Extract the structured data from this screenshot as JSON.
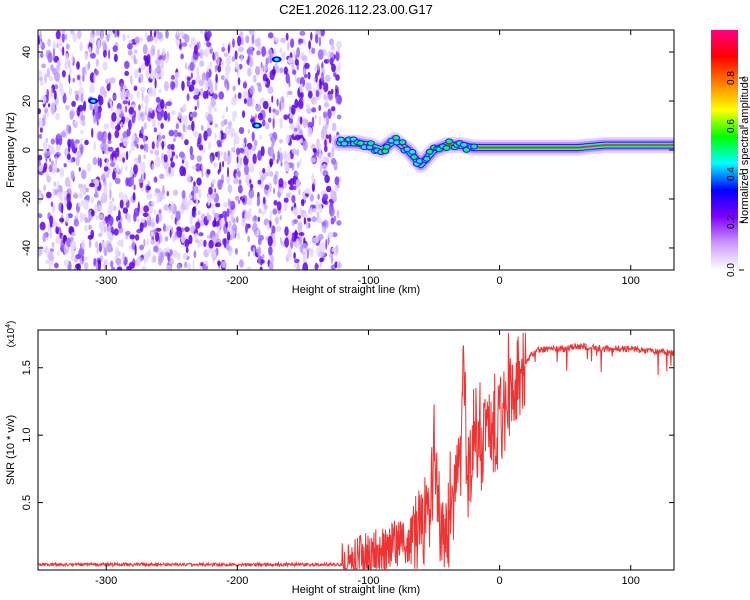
{
  "figure_title": "C2E1.2026.112.23.00.G17",
  "chart_data": [
    {
      "type": "heatmap",
      "id": "spectrogram",
      "xlabel": "Height of straight line (km)",
      "ylabel": "Frequency (Hz)",
      "xlim": [
        -352,
        133
      ],
      "ylim": [
        -49,
        49
      ],
      "xticks": [
        -300,
        -200,
        -100,
        0,
        100
      ],
      "xtick_labels": [
        "-300",
        "-200",
        "-100",
        "0",
        "100"
      ],
      "yticks": [
        -40,
        -20,
        0,
        20,
        40
      ],
      "ytick_labels": [
        "-40",
        "-20",
        "0",
        "20",
        "40"
      ],
      "noise_region_km": [
        -352,
        -122
      ],
      "signal_trace": {
        "x": [
          -122,
          -110,
          -100,
          -90,
          -80,
          -70,
          -60,
          -55,
          -50,
          -40,
          -30,
          -20,
          -10,
          0,
          20,
          40,
          60,
          80,
          100,
          133
        ],
        "freq": [
          3,
          3,
          2,
          0,
          4,
          0,
          -6,
          -3,
          0,
          2,
          2,
          1,
          1,
          1,
          1,
          1,
          1,
          2,
          2,
          2
        ]
      },
      "colorbar": {
        "label": "Normalized spectral amplitude",
        "range": [
          0,
          1
        ],
        "ticks": [
          0.0,
          0.2,
          0.4,
          0.6,
          0.8
        ],
        "tick_labels": [
          "0.0",
          "0.2",
          "0.4",
          "0.6",
          "0.8"
        ],
        "colors": [
          "#ffffff",
          "#cc99ff",
          "#7f00ff",
          "#0000ff",
          "#00ffff",
          "#00ff00",
          "#ffff00",
          "#ff8000",
          "#ff0000",
          "#ff0080"
        ]
      }
    },
    {
      "type": "line",
      "id": "snr",
      "xlabel": "Height of straight line (km)",
      "ylabel": "SNR (10 * v/v)",
      "y_multiplier": "(x10",
      "y_multiplier_exp": "4",
      "y_multiplier_close": ")",
      "xlim": [
        -352,
        133
      ],
      "ylim": [
        0,
        1.78
      ],
      "xticks": [
        -300,
        -200,
        -100,
        0,
        100
      ],
      "xtick_labels": [
        "-300",
        "-200",
        "-100",
        "0",
        "100"
      ],
      "yticks": [
        0.5,
        1.0,
        1.5
      ],
      "ytick_labels": [
        "0.5",
        "1.0",
        "1.5"
      ],
      "series": [
        {
          "name": "SNR",
          "color": "#ee3333",
          "x": [
            -352,
            -300,
            -250,
            -200,
            -150,
            -120,
            -110,
            -100,
            -90,
            -80,
            -70,
            -65,
            -60,
            -55,
            -52,
            -50,
            -48,
            -45,
            -40,
            -35,
            -30,
            -27,
            -25,
            -20,
            -15,
            -10,
            -5,
            0,
            5,
            10,
            15,
            20,
            25,
            30,
            40,
            50,
            60,
            70,
            80,
            90,
            100,
            110,
            120,
            133
          ],
          "y": [
            0.04,
            0.04,
            0.04,
            0.04,
            0.04,
            0.04,
            0.06,
            0.09,
            0.12,
            0.17,
            0.22,
            0.28,
            0.32,
            0.38,
            0.55,
            0.95,
            0.6,
            0.35,
            0.3,
            0.5,
            0.7,
            1.62,
            0.6,
            0.9,
            0.88,
            0.97,
            1.0,
            1.08,
            1.2,
            1.35,
            1.48,
            1.55,
            1.6,
            1.63,
            1.64,
            1.64,
            1.66,
            1.65,
            1.64,
            1.64,
            1.64,
            1.63,
            1.62,
            1.61
          ]
        }
      ]
    }
  ]
}
